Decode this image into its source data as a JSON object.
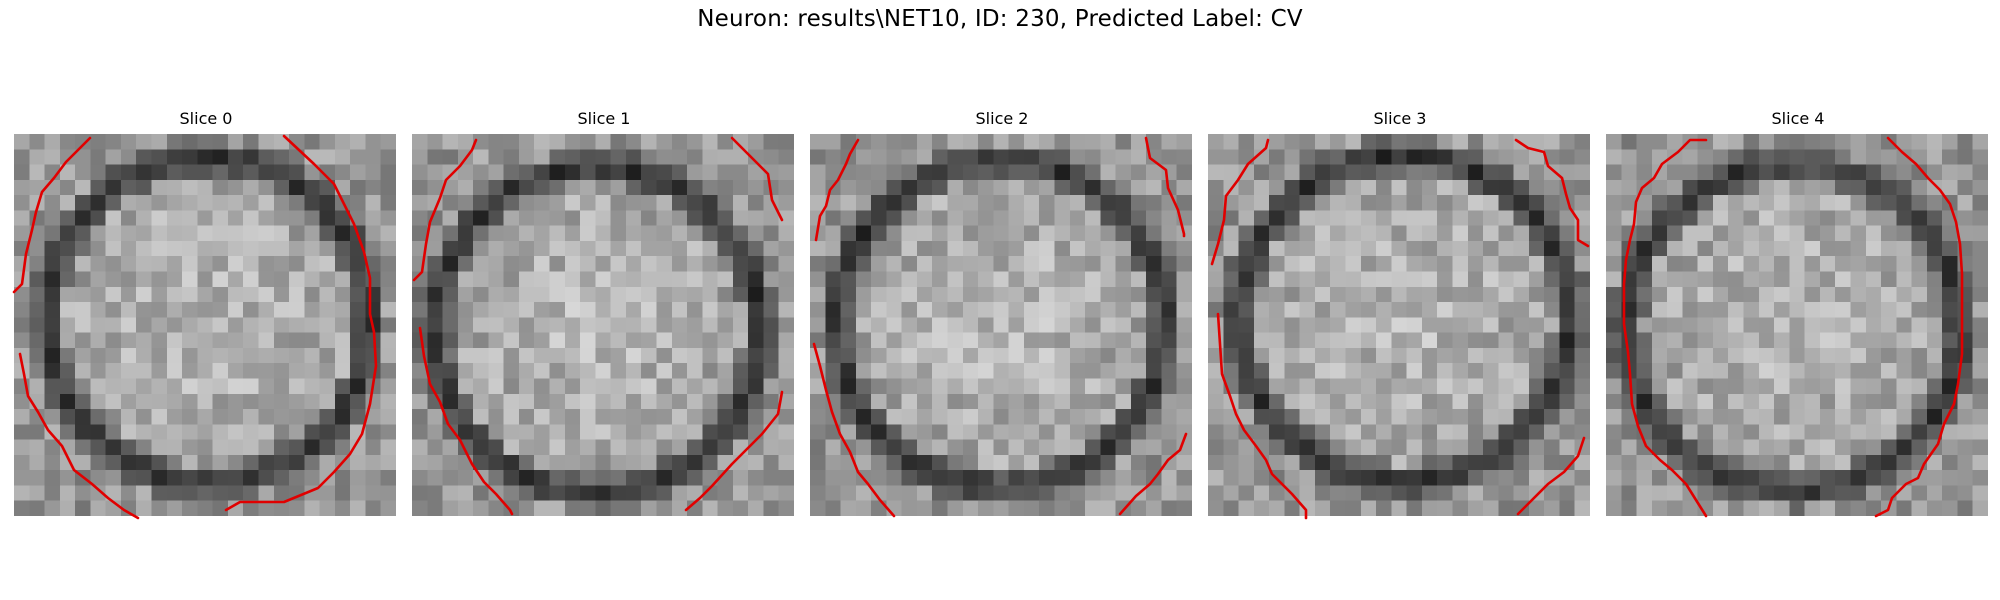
{
  "figure": {
    "title": "Neuron: results\\NET10, ID: 230, Predicted Label: CV"
  },
  "contour_color": "#e00000",
  "colormap": "gray",
  "slices": [
    {
      "title": "Slice 0"
    },
    {
      "title": "Slice 1"
    },
    {
      "title": "Slice 2"
    },
    {
      "title": "Slice 3"
    },
    {
      "title": "Slice 4"
    }
  ]
}
